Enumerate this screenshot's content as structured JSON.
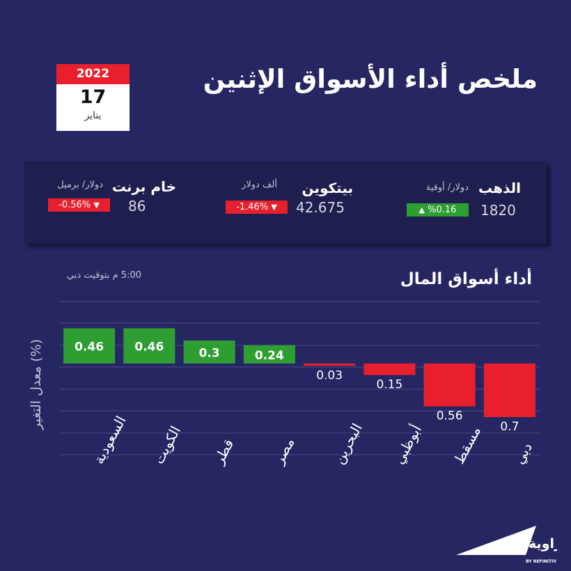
{
  "header": {
    "title": "ملخص أداء الأسواق الإثنين",
    "date": {
      "year": "2022",
      "day": "17",
      "month": "يناير"
    }
  },
  "commodities": [
    {
      "name": "الذهب",
      "unit": "دولار/ أوقية",
      "price": "1820",
      "change": "%0.16",
      "direction": "up"
    },
    {
      "name": "بيتكوين",
      "unit": "ألف دولار",
      "price": "42.675",
      "change": "-1.46%",
      "direction": "down"
    },
    {
      "name": "خام برنت",
      "unit": "دولار/ برميل",
      "price": "86",
      "change": "-0.56%",
      "direction": "down"
    }
  ],
  "colors": {
    "background": "#262662",
    "strip": "#1e1e4f",
    "positive": "#2e9e33",
    "negative": "#e8202e",
    "grid": "#4a4a86"
  },
  "chart_data": {
    "type": "bar",
    "title": "أداء أسواق المال",
    "subtitle": "5:00 م بتوقيت دبي",
    "ylabel": "معدل التغير (%)",
    "categories": [
      "السعودية",
      "الكويت",
      "قطر",
      "مصر",
      "البحرين",
      "أبوظبي",
      "مسقط",
      "دبي"
    ],
    "values": [
      0.46,
      0.46,
      0.3,
      0.24,
      -0.03,
      -0.15,
      -0.56,
      -0.7
    ],
    "labels": [
      "0.46",
      "0.46",
      "0.3",
      "0.24",
      "0.03",
      "0.15",
      "0.56",
      "0.7"
    ],
    "grid": true
  },
  "logo": {
    "name": "زاوية",
    "tagline": "BY REFINITIV"
  }
}
